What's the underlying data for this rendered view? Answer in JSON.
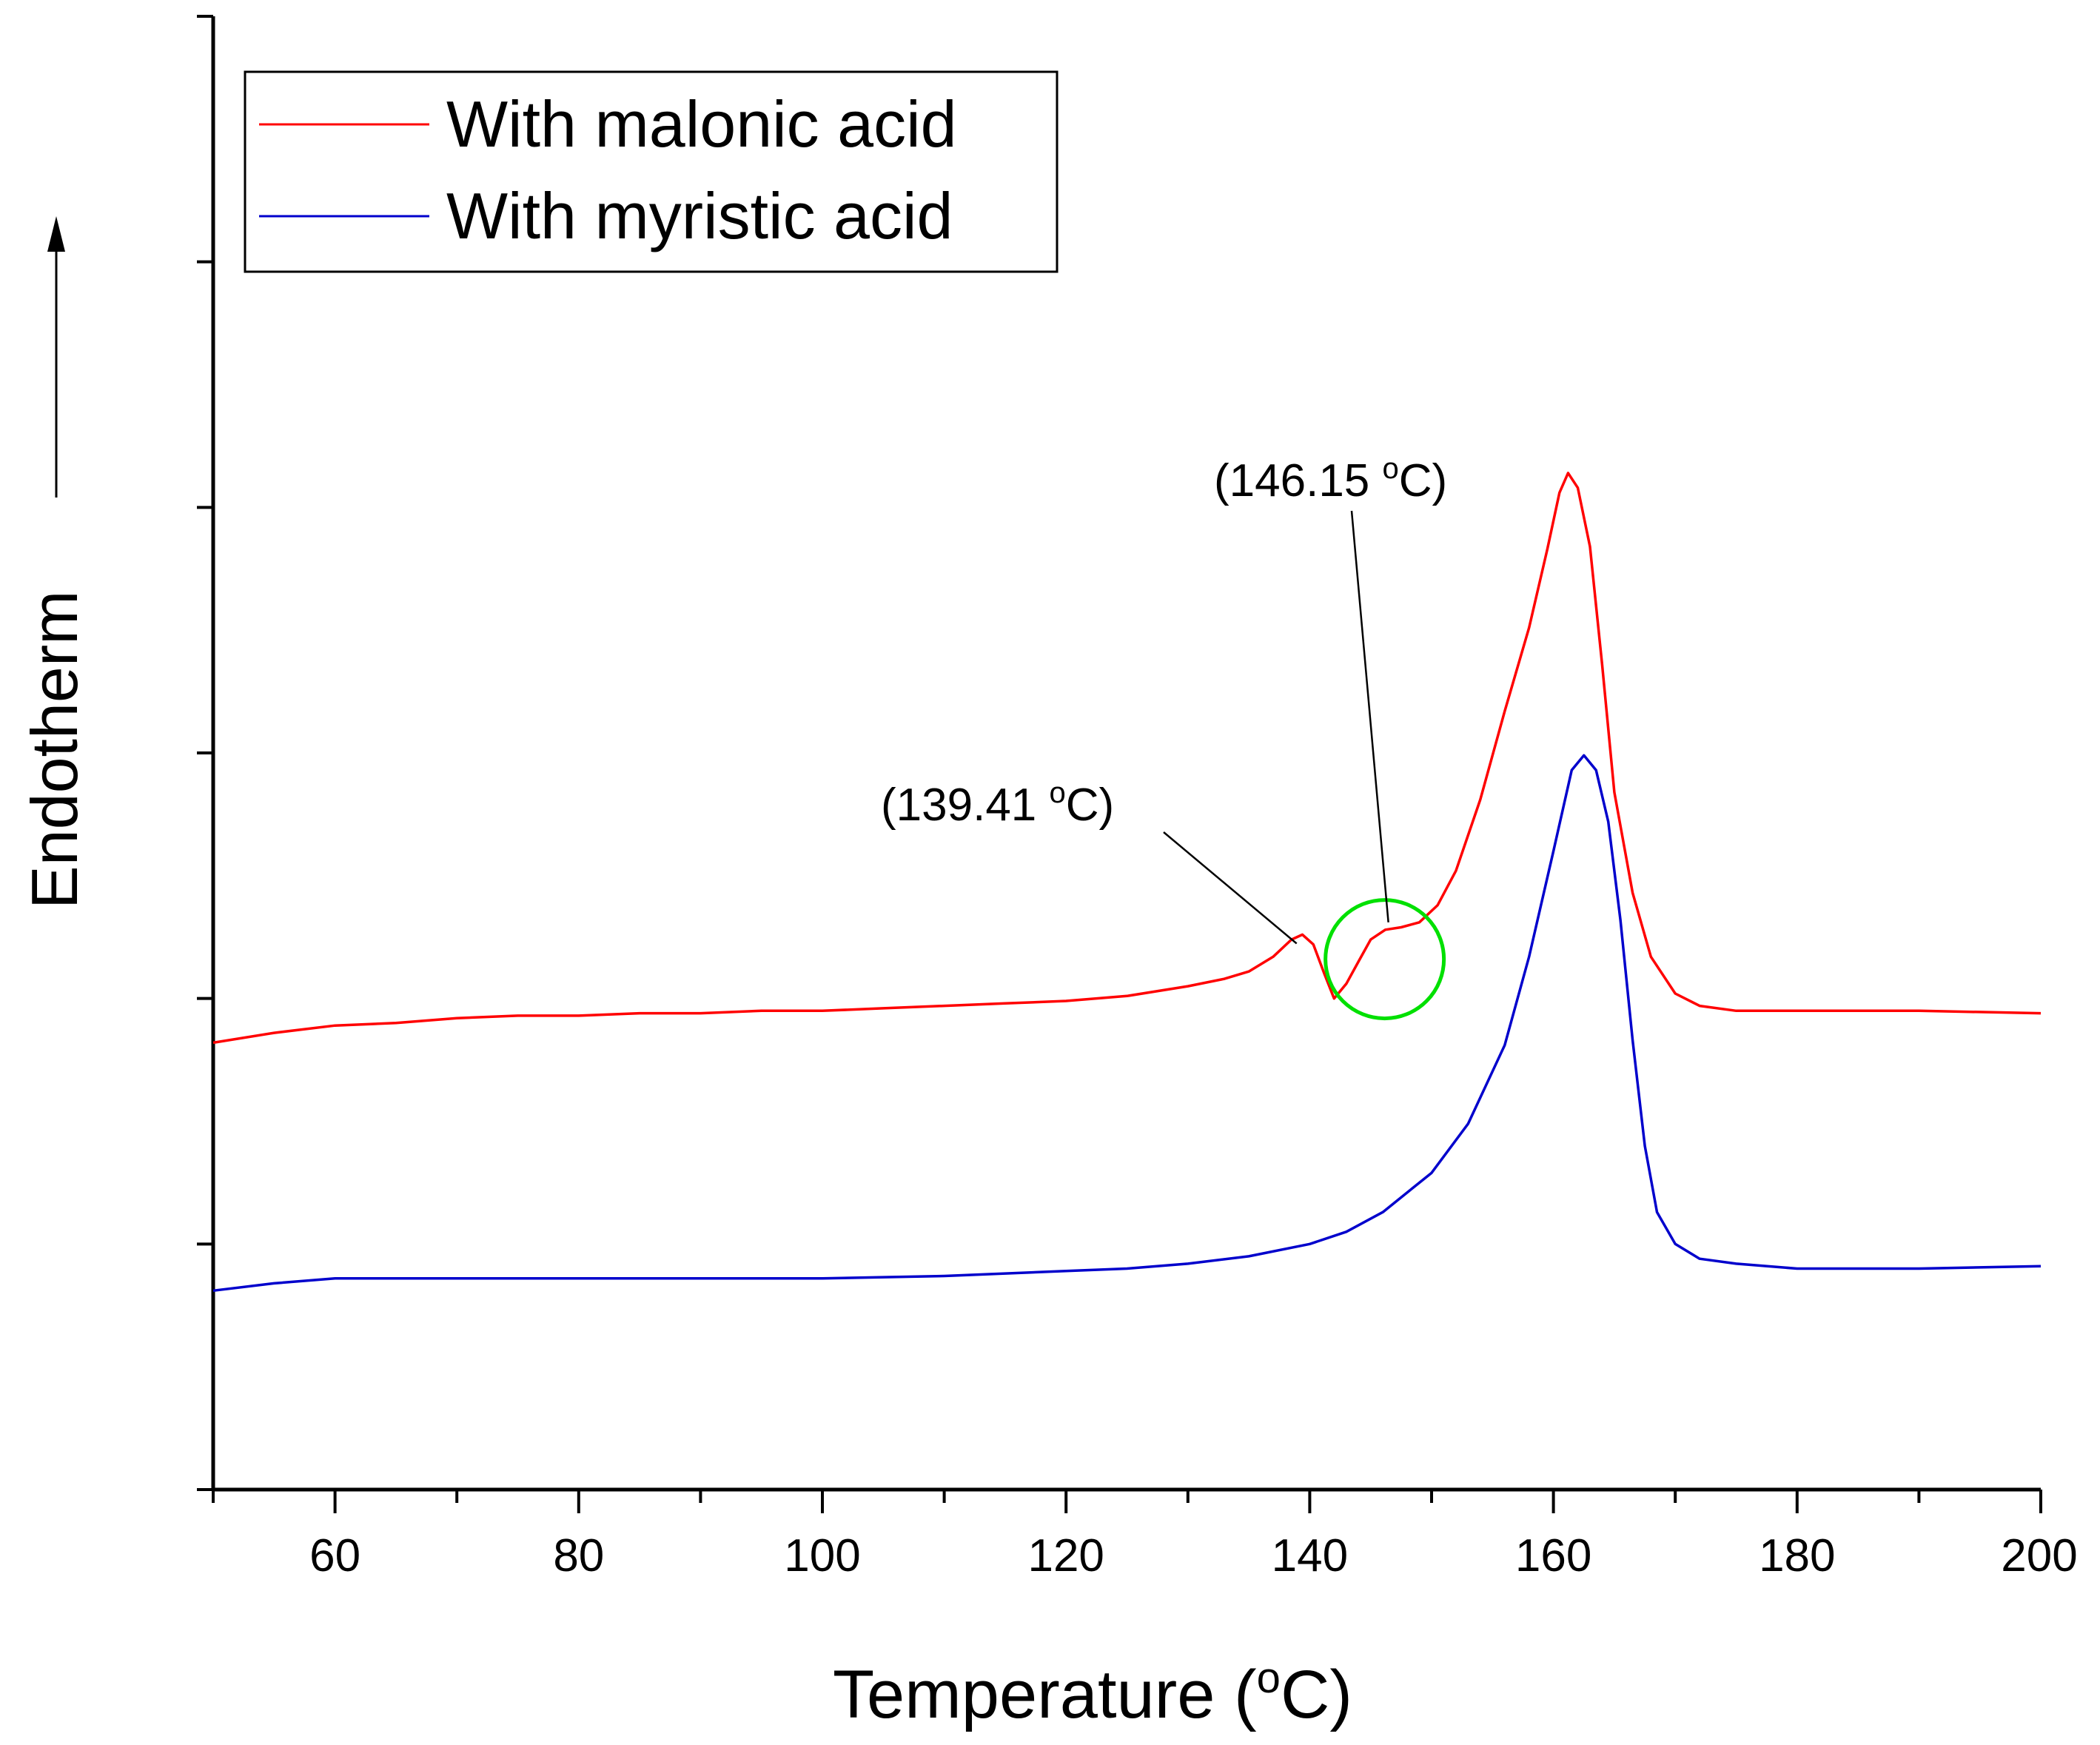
{
  "chart_data": {
    "type": "line",
    "title": "",
    "xlabel": "Temperature",
    "xlabel_unit_sup": "o",
    "xlabel_unit": "C",
    "ylabel": "Endotherm",
    "xlim": [
      50,
      200
    ],
    "ylim": [
      0,
      6
    ],
    "x_ticks": [
      60,
      80,
      100,
      120,
      140,
      160,
      180,
      200
    ],
    "x_minor_step": 10,
    "y_tick_step": 1,
    "y_tick_labels_shown": false,
    "legend_position": "top-left",
    "series": [
      {
        "name": "With malonic acid",
        "color": "#ff0000",
        "points": [
          [
            50,
            1.82
          ],
          [
            55,
            1.86
          ],
          [
            60,
            1.89
          ],
          [
            65,
            1.9
          ],
          [
            70,
            1.92
          ],
          [
            75,
            1.93
          ],
          [
            80,
            1.93
          ],
          [
            85,
            1.94
          ],
          [
            90,
            1.94
          ],
          [
            95,
            1.95
          ],
          [
            100,
            1.95
          ],
          [
            105,
            1.96
          ],
          [
            110,
            1.97
          ],
          [
            115,
            1.98
          ],
          [
            120,
            1.99
          ],
          [
            125,
            2.01
          ],
          [
            130,
            2.05
          ],
          [
            133,
            2.08
          ],
          [
            135,
            2.11
          ],
          [
            137,
            2.17
          ],
          [
            138.5,
            2.24
          ],
          [
            139.4,
            2.26
          ],
          [
            140.3,
            2.22
          ],
          [
            141.2,
            2.1
          ],
          [
            142,
            2.0
          ],
          [
            143,
            2.06
          ],
          [
            144,
            2.15
          ],
          [
            145,
            2.24
          ],
          [
            146.2,
            2.28
          ],
          [
            147.5,
            2.29
          ],
          [
            149,
            2.31
          ],
          [
            150.5,
            2.38
          ],
          [
            152,
            2.52
          ],
          [
            154,
            2.81
          ],
          [
            156,
            3.17
          ],
          [
            158,
            3.51
          ],
          [
            159.5,
            3.83
          ],
          [
            160.5,
            4.06
          ],
          [
            161.2,
            4.14
          ],
          [
            162,
            4.08
          ],
          [
            163,
            3.84
          ],
          [
            164,
            3.36
          ],
          [
            165,
            2.84
          ],
          [
            166.5,
            2.43
          ],
          [
            168,
            2.17
          ],
          [
            170,
            2.02
          ],
          [
            172,
            1.97
          ],
          [
            175,
            1.95
          ],
          [
            180,
            1.95
          ],
          [
            190,
            1.95
          ],
          [
            200,
            1.94
          ]
        ]
      },
      {
        "name": "With myristic acid",
        "color": "#0000cc",
        "points": [
          [
            50,
            0.81
          ],
          [
            55,
            0.84
          ],
          [
            60,
            0.86
          ],
          [
            70,
            0.86
          ],
          [
            80,
            0.86
          ],
          [
            90,
            0.86
          ],
          [
            100,
            0.86
          ],
          [
            110,
            0.87
          ],
          [
            120,
            0.89
          ],
          [
            125,
            0.9
          ],
          [
            130,
            0.92
          ],
          [
            135,
            0.95
          ],
          [
            140,
            1.0
          ],
          [
            143,
            1.05
          ],
          [
            146,
            1.13
          ],
          [
            150,
            1.29
          ],
          [
            153,
            1.49
          ],
          [
            156,
            1.81
          ],
          [
            158,
            2.17
          ],
          [
            160,
            2.6
          ],
          [
            161.5,
            2.93
          ],
          [
            162.5,
            2.99
          ],
          [
            163.5,
            2.93
          ],
          [
            164.5,
            2.72
          ],
          [
            165.5,
            2.32
          ],
          [
            166.5,
            1.83
          ],
          [
            167.5,
            1.4
          ],
          [
            168.5,
            1.13
          ],
          [
            170,
            1.0
          ],
          [
            172,
            0.94
          ],
          [
            175,
            0.92
          ],
          [
            180,
            0.9
          ],
          [
            190,
            0.9
          ],
          [
            200,
            0.91
          ]
        ]
      }
    ],
    "annotations": [
      {
        "label": "(139.41 ",
        "sup": "o",
        "unit": "C)",
        "x": 139.41,
        "y": 2.26
      },
      {
        "label": "(146.15 ",
        "sup": "o",
        "unit": "C)",
        "x": 146.15,
        "y": 2.28
      }
    ],
    "highlight": {
      "shape": "circle",
      "color": "#00e000",
      "center_x": 146.15,
      "center_y": 2.16
    }
  }
}
